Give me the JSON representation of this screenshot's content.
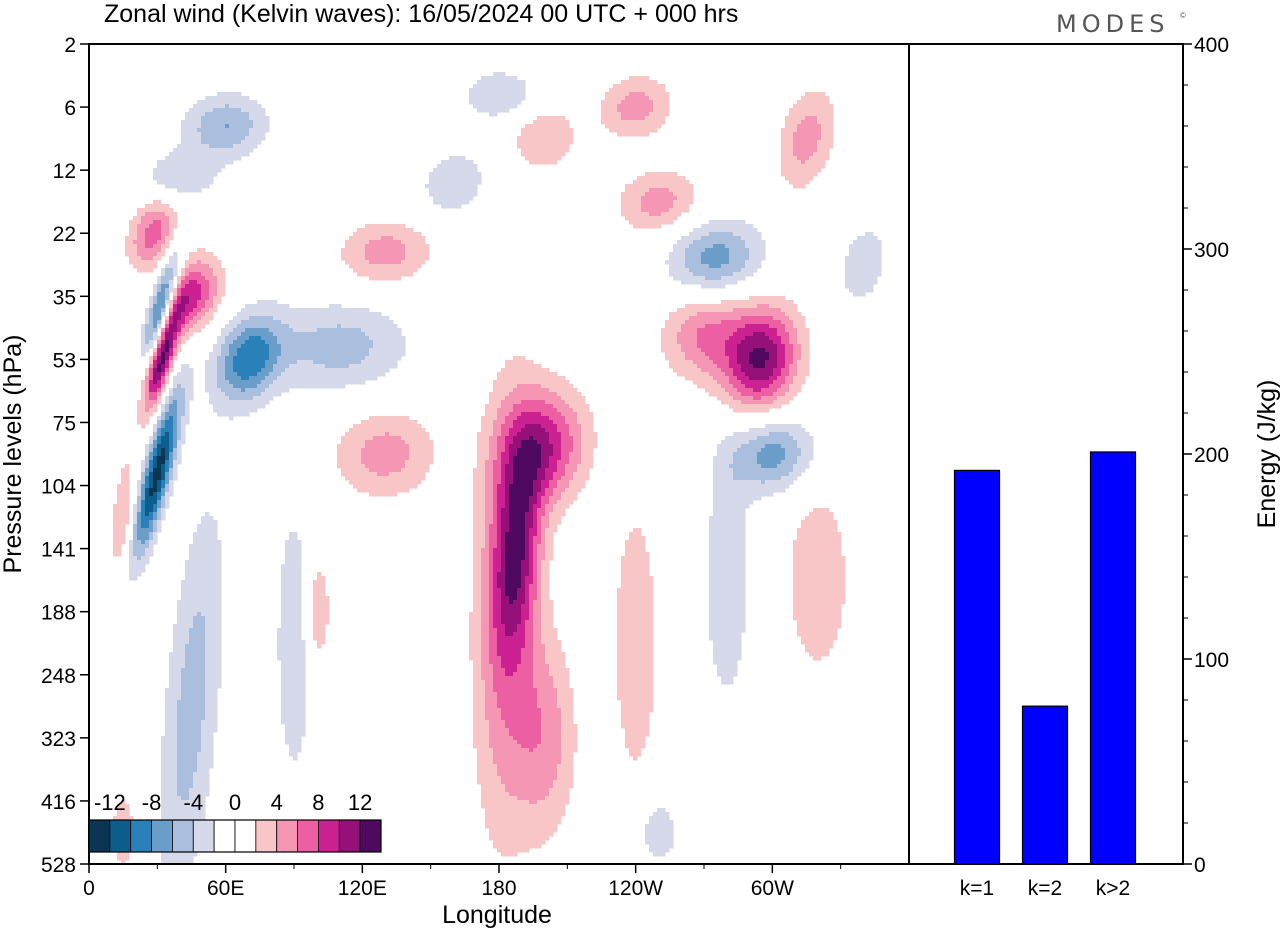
{
  "title": "Zonal wind (Kelvin waves):  16/05/2024  00 UTC  + 000 hrs",
  "brand": "MODES",
  "brand_mark": "©",
  "chart_data": [
    {
      "type": "heatmap",
      "xlabel": "Longitude",
      "ylabel": "Pressure levels (hPa)",
      "x_ticks": [
        "0",
        "60E",
        "120E",
        "180",
        "120W",
        "60W"
      ],
      "x_tick_lon": [
        0,
        60,
        120,
        180,
        240,
        300
      ],
      "xlim": [
        0,
        360
      ],
      "y_ticks": [
        "2",
        "6",
        "12",
        "22",
        "35",
        "53",
        "75",
        "104",
        "141",
        "188",
        "248",
        "323",
        "416",
        "528"
      ],
      "y_scale": "levels",
      "colorbar": {
        "labels": [
          "-12",
          "-8",
          "-4",
          "0",
          "4",
          "8",
          "12"
        ],
        "colors": [
          "#0b3553",
          "#0d5e8d",
          "#2a80b9",
          "#6a9ec8",
          "#a9bfdd",
          "#d5d9ea",
          "#ffffff",
          "#ffffff",
          "#f8c6c6",
          "#f596b5",
          "#ec5fa3",
          "#cc2190",
          "#951179",
          "#4f0a5f"
        ]
      },
      "anomalies": [
        {
          "lon": 30,
          "lev": 6.8,
          "value": -13,
          "dlon": 6,
          "dlev": 1.3,
          "tilt": 0.55
        },
        {
          "lon": 32,
          "lev": 4.1,
          "value": -11,
          "dlon": 5,
          "dlev": 0.8,
          "tilt": 0.6
        },
        {
          "lon": 32,
          "lev": 5.0,
          "value": 13,
          "dlon": 5,
          "dlev": 0.8,
          "tilt": 0.6
        },
        {
          "lon": 45,
          "lev": 4.0,
          "value": 9,
          "dlon": 12,
          "dlev": 0.6,
          "tilt": 0.5
        },
        {
          "lon": 28,
          "lev": 3.0,
          "value": 7,
          "dlon": 10,
          "dlev": 0.55,
          "tilt": 0.5
        },
        {
          "lon": 70,
          "lev": 5.0,
          "value": -9,
          "dlon": 14,
          "dlev": 0.7,
          "tilt": 0.45
        },
        {
          "lon": 45,
          "lev": 10.5,
          "value": -5,
          "dlon": 12,
          "dlev": 3.2,
          "tilt": 0.2
        },
        {
          "lon": 130,
          "lev": 6.5,
          "value": 5,
          "dlon": 22,
          "dlev": 0.7,
          "tilt": 0.1
        },
        {
          "lon": 200,
          "lev": 6.4,
          "value": 9,
          "dlon": 18,
          "dlev": 0.9,
          "tilt": 0.2
        },
        {
          "lon": 188,
          "lev": 8.0,
          "value": 8,
          "dlon": 10,
          "dlev": 1.6,
          "tilt": 0.15
        },
        {
          "lon": 183,
          "lev": 9.0,
          "value": 6,
          "dlon": 14,
          "dlev": 3.5,
          "tilt": 0.05
        },
        {
          "lon": 295,
          "lev": 5.0,
          "value": 12,
          "dlon": 16,
          "dlev": 0.8,
          "tilt": 0.2
        },
        {
          "lon": 270,
          "lev": 4.6,
          "value": 6,
          "dlon": 18,
          "dlev": 0.7,
          "tilt": 0.1
        },
        {
          "lon": 300,
          "lev": 6.5,
          "value": -7,
          "dlon": 18,
          "dlev": 0.6,
          "tilt": 0.2
        },
        {
          "lon": 275,
          "lev": 3.4,
          "value": -7,
          "dlon": 20,
          "dlev": 0.6,
          "tilt": 0.3
        },
        {
          "lon": 110,
          "lev": 4.8,
          "value": -5,
          "dlon": 30,
          "dlev": 0.7,
          "tilt": 0.1
        },
        {
          "lon": 60,
          "lev": 1.3,
          "value": -6,
          "dlon": 18,
          "dlev": 0.5,
          "tilt": 0.2
        },
        {
          "lon": 130,
          "lev": 3.3,
          "value": 5,
          "dlon": 20,
          "dlev": 0.5,
          "tilt": 0.2
        },
        {
          "lon": 240,
          "lev": 1.0,
          "value": 5,
          "dlon": 16,
          "dlev": 0.5,
          "tilt": 0.3
        },
        {
          "lon": 315,
          "lev": 1.5,
          "value": 5,
          "dlon": 12,
          "dlev": 0.8,
          "tilt": 0.4
        },
        {
          "lon": 250,
          "lev": 2.5,
          "value": 5,
          "dlon": 18,
          "dlev": 0.5,
          "tilt": 0.3
        },
        {
          "lon": 200,
          "lev": 1.5,
          "value": 4,
          "dlon": 14,
          "dlev": 0.5,
          "tilt": 0.2
        },
        {
          "lon": 200,
          "lev": 11.0,
          "value": 5,
          "dlon": 14,
          "dlev": 1.6,
          "tilt": 0.0
        },
        {
          "lon": 240,
          "lev": 9.5,
          "value": 4,
          "dlon": 10,
          "dlev": 2.2,
          "tilt": 0.0
        },
        {
          "lon": 320,
          "lev": 8.5,
          "value": 4,
          "dlon": 14,
          "dlev": 1.5,
          "tilt": 0.0
        },
        {
          "lon": 280,
          "lev": 8.5,
          "value": -4,
          "dlon": 10,
          "dlev": 2.0,
          "tilt": 0.0
        },
        {
          "lon": 250,
          "lev": 12.5,
          "value": -4,
          "dlon": 8,
          "dlev": 0.5,
          "tilt": 0.0
        },
        {
          "lon": 90,
          "lev": 9.5,
          "value": -4,
          "dlon": 8,
          "dlev": 2.2,
          "tilt": 0.0
        },
        {
          "lon": 100,
          "lev": 9.0,
          "value": 4,
          "dlon": 6,
          "dlev": 0.9,
          "tilt": 0.0
        },
        {
          "lon": 15,
          "lev": 7.5,
          "value": 4,
          "dlon": 5,
          "dlev": 1.0,
          "tilt": 0.2
        },
        {
          "lon": 15,
          "lev": 12.5,
          "value": 4,
          "dlon": 5,
          "dlev": 0.6,
          "tilt": 0.0
        },
        {
          "lon": 40,
          "lev": 2.1,
          "value": -4,
          "dlon": 16,
          "dlev": 0.4,
          "tilt": 0.2
        },
        {
          "lon": 160,
          "lev": 2.2,
          "value": -4,
          "dlon": 14,
          "dlev": 0.5,
          "tilt": 0.3
        },
        {
          "lon": 340,
          "lev": 3.5,
          "value": -4,
          "dlon": 10,
          "dlev": 0.6,
          "tilt": 0.3
        },
        {
          "lon": 180,
          "lev": 0.8,
          "value": -4,
          "dlon": 16,
          "dlev": 0.4,
          "tilt": 0.2
        }
      ]
    },
    {
      "type": "bar",
      "categories": [
        "k=1",
        "k=2",
        "k>2"
      ],
      "values": [
        192,
        77,
        201
      ],
      "ylabel": "Energy (J/kg)",
      "y_ticks": [
        "0",
        "100",
        "200",
        "300",
        "400"
      ],
      "ylim": [
        0,
        400
      ],
      "bar_color": "#0000ff"
    }
  ]
}
